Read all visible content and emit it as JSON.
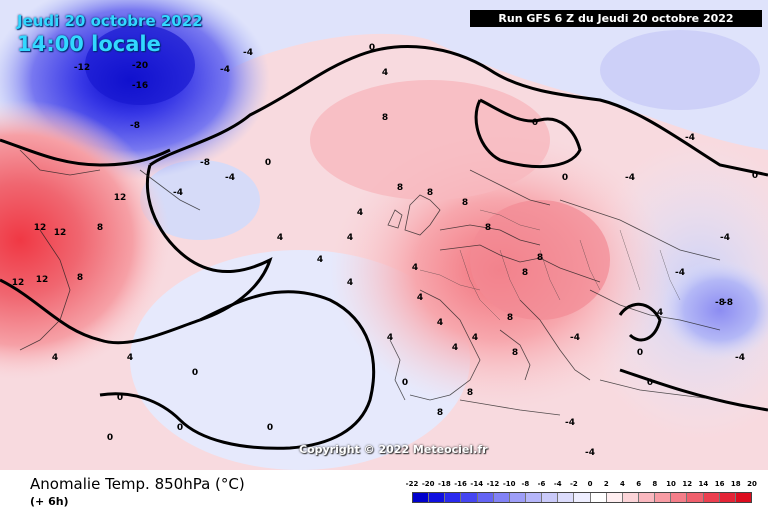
{
  "header": {
    "date": "Jeudi 20 octobre 2022",
    "time": "14:00 locale",
    "run": "Run GFS 6 Z du Jeudi 20 octobre 2022"
  },
  "copyright": "Copyright © 2022 Meteociel.fr",
  "footer": {
    "title": "Anomalie Temp. 850hPa (°C)",
    "subtitle": "(+ 6h)"
  },
  "legend": {
    "ticks": [
      "-22",
      "-20",
      "-18",
      "-16",
      "-14",
      "-12",
      "-10",
      "-8",
      "-6",
      "-4",
      "-2",
      "0",
      "2",
      "4",
      "6",
      "8",
      "10",
      "12",
      "14",
      "16",
      "18",
      "20"
    ],
    "colors": [
      "#0000cc",
      "#1010e0",
      "#2a2aee",
      "#4646f2",
      "#6464f4",
      "#8282f6",
      "#9e9ef8",
      "#b6b6fa",
      "#cacafa",
      "#dcdcfc",
      "#eeeeff",
      "#ffffff",
      "#ffeef0",
      "#fcd4d8",
      "#fab8bf",
      "#f89ca4",
      "#f47e89",
      "#f0606d",
      "#ec4050",
      "#e42436",
      "#dc0c1e"
    ]
  },
  "map_labels": [
    {
      "t": "-20"
    },
    {
      "t": "-16"
    },
    {
      "t": "-12"
    },
    {
      "t": "-8"
    },
    {
      "t": "-4"
    },
    {
      "t": "-4"
    },
    {
      "t": "-4"
    },
    {
      "t": "-4"
    },
    {
      "t": "-8"
    },
    {
      "t": "-8"
    },
    {
      "t": "-4"
    },
    {
      "t": "-4"
    },
    {
      "t": "-4"
    },
    {
      "t": "-4"
    },
    {
      "t": "-4"
    },
    {
      "t": "-4"
    },
    {
      "t": "-4"
    },
    {
      "t": "12"
    },
    {
      "t": "12"
    },
    {
      "t": "12"
    },
    {
      "t": "12"
    },
    {
      "t": "12"
    },
    {
      "t": "8"
    },
    {
      "t": "8"
    },
    {
      "t": "4"
    },
    {
      "t": "4"
    },
    {
      "t": "0"
    },
    {
      "t": "0"
    },
    {
      "t": "0"
    },
    {
      "t": "0"
    },
    {
      "t": "0"
    },
    {
      "t": "0"
    },
    {
      "t": "0"
    },
    {
      "t": "0"
    },
    {
      "t": "4"
    },
    {
      "t": "4"
    },
    {
      "t": "4"
    },
    {
      "t": "8"
    },
    {
      "t": "8"
    },
    {
      "t": "8"
    },
    {
      "t": "8"
    },
    {
      "t": "8"
    },
    {
      "t": "8"
    },
    {
      "t": "4"
    },
    {
      "t": "4"
    },
    {
      "t": "4"
    },
    {
      "t": "4"
    },
    {
      "t": "8"
    },
    {
      "t": "8"
    },
    {
      "t": "4"
    },
    {
      "t": "4"
    },
    {
      "t": "8"
    },
    {
      "t": "8"
    },
    {
      "t": "8"
    },
    {
      "t": "4"
    },
    {
      "t": "0"
    },
    {
      "t": "0"
    },
    {
      "t": "0"
    },
    {
      "t": "4"
    },
    {
      "t": "-4"
    },
    {
      "t": "-8"
    },
    {
      "t": "4"
    },
    {
      "t": "4"
    },
    {
      "t": "0"
    },
    {
      "t": "0"
    }
  ]
}
